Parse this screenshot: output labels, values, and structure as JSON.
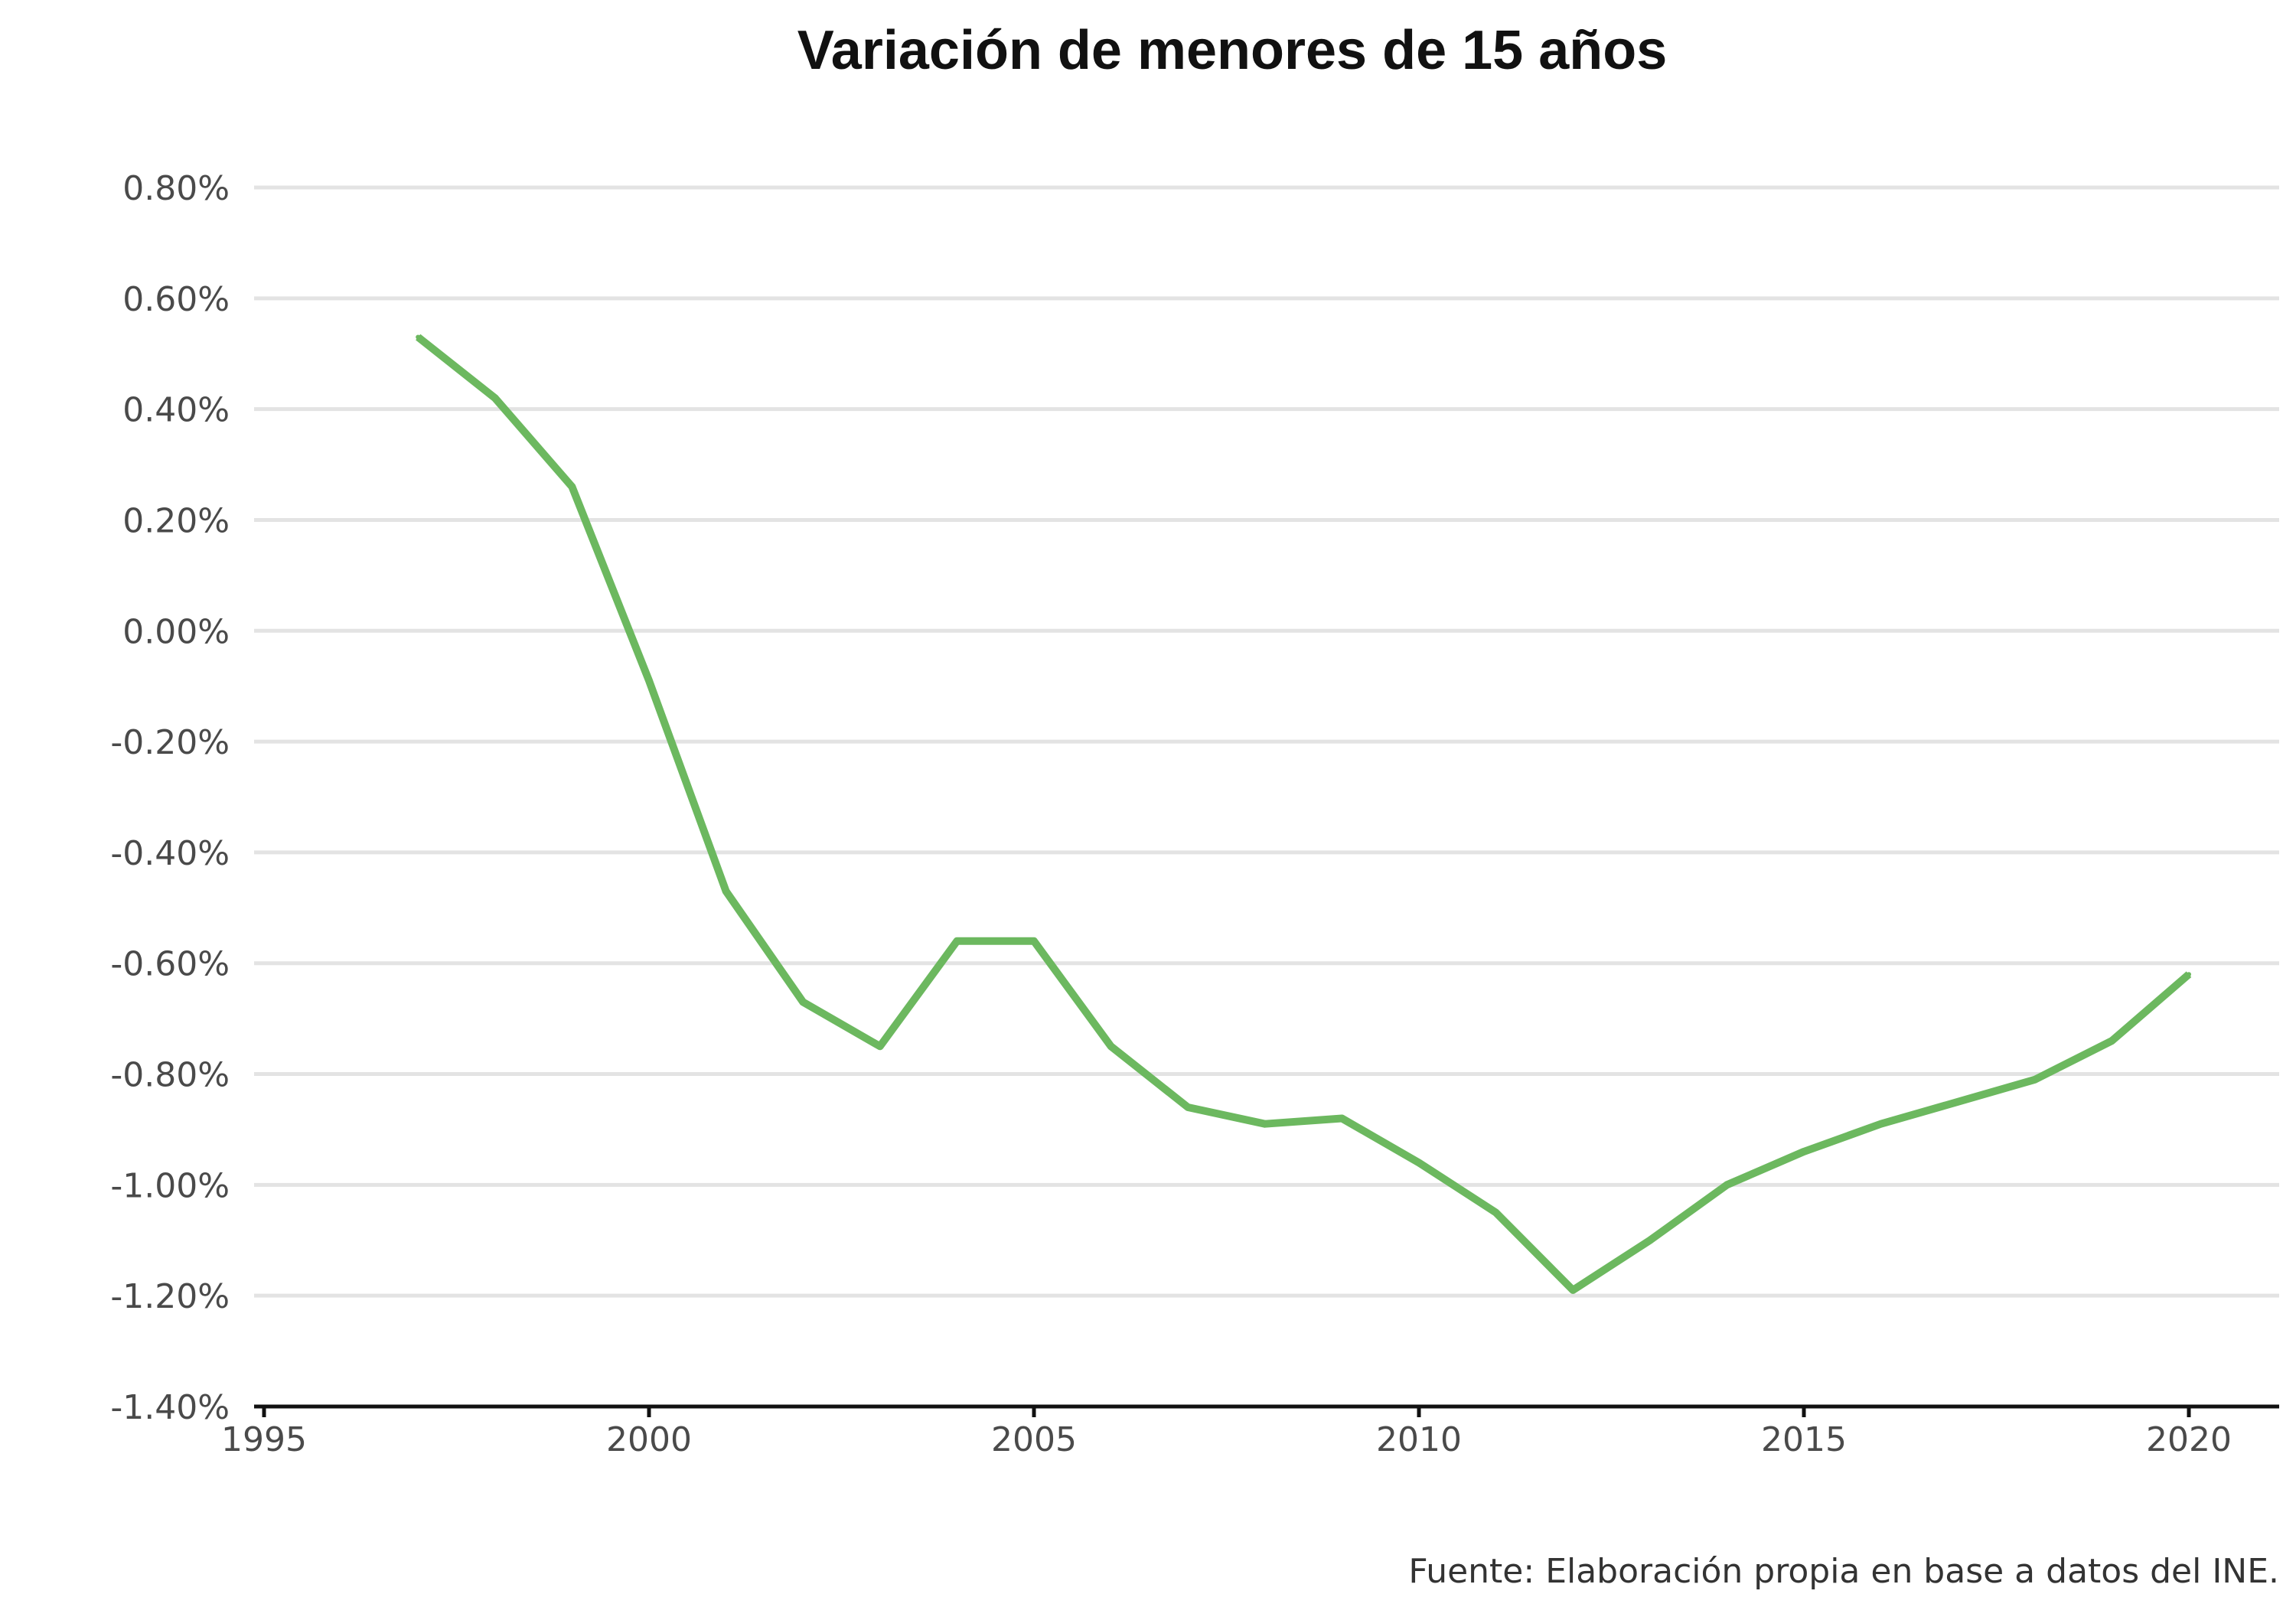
{
  "chart_data": {
    "type": "line",
    "title": "Variación de menores de 15 años",
    "source": "Fuente: Elaboración propia en base a datos del INE.",
    "xlabel": "",
    "ylabel": "",
    "xlim": [
      1995,
      2021.2
    ],
    "ylim": [
      -1.4,
      0.8
    ],
    "x_ticks": [
      1995,
      2000,
      2005,
      2010,
      2015,
      2020
    ],
    "y_ticks": [
      0.8,
      0.6,
      0.4,
      0.2,
      0.0,
      -0.2,
      -0.4,
      -0.6,
      -0.8,
      -1.0,
      -1.2,
      -1.4
    ],
    "y_tick_labels": [
      "0.80%",
      "0.60%",
      "0.40%",
      "0.20%",
      "0.00%",
      "-0.20%",
      "-0.40%",
      "-0.60%",
      "-0.80%",
      "-1.00%",
      "-1.20%",
      "-1.40%"
    ],
    "grid": true,
    "legend": "none",
    "series": [
      {
        "color": "#6cb85f",
        "x": [
          1997,
          1998,
          1999,
          2000,
          2001,
          2002,
          2003,
          2004,
          2005,
          2006,
          2007,
          2008,
          2009,
          2010,
          2011,
          2012,
          2013,
          2014,
          2015,
          2016,
          2017,
          2018,
          2019,
          2020
        ],
        "y": [
          0.53,
          0.42,
          0.26,
          -0.09,
          -0.47,
          -0.67,
          -0.75,
          -0.56,
          -0.56,
          -0.75,
          -0.86,
          -0.89,
          -0.88,
          -0.96,
          -1.05,
          -1.19,
          -1.1,
          -1.0,
          -0.94,
          -0.89,
          -0.85,
          -0.81,
          -0.74,
          -0.62
        ]
      }
    ]
  }
}
